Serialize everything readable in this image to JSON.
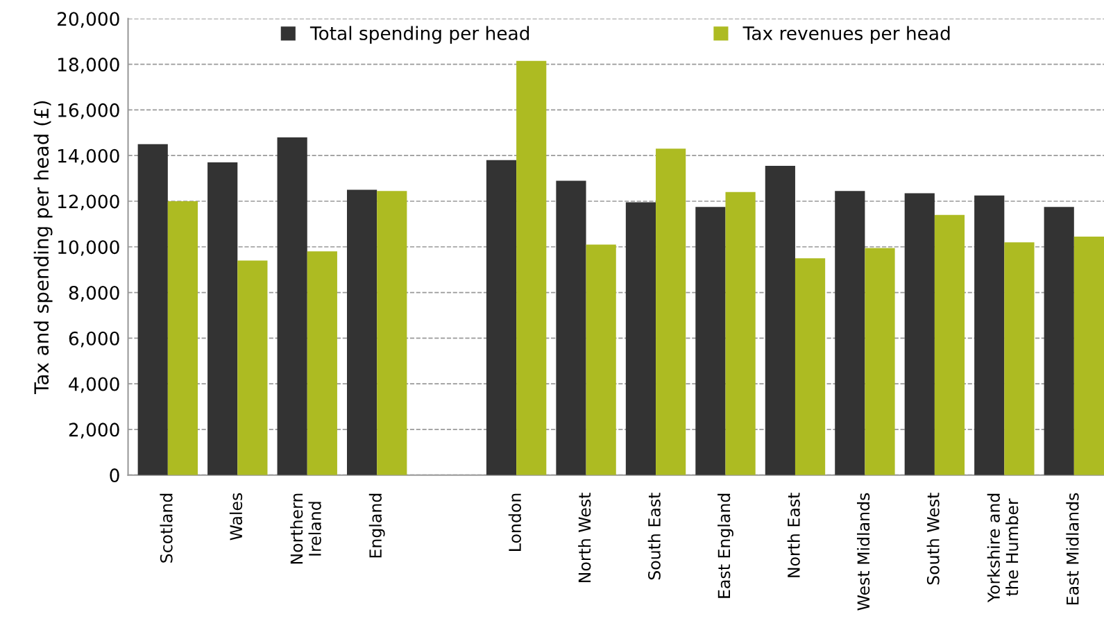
{
  "chart_data": {
    "type": "bar",
    "ylabel": "Tax and spending per head (£)",
    "categories": [
      "Scotland",
      "Wales",
      "Northern\nIreland",
      "England",
      null,
      "London",
      "North West",
      "South East",
      "East England",
      "North East",
      "West Midlands",
      "South West",
      "Yorkshire and\nthe Humber",
      "East Midlands"
    ],
    "series": [
      {
        "name": "Total spending per head",
        "color": "#333333",
        "values": [
          14500,
          13700,
          14800,
          12500,
          null,
          13800,
          12900,
          11950,
          11750,
          13550,
          12450,
          12350,
          12250,
          11750
        ]
      },
      {
        "name": "Tax revenues per head",
        "color": "#adbb22",
        "values": [
          12000,
          9400,
          9800,
          12450,
          null,
          18150,
          10100,
          14300,
          12400,
          9500,
          9950,
          11400,
          10200,
          10450
        ]
      }
    ],
    "ylim": [
      0,
      20000
    ],
    "yticks": [
      {
        "value": 0,
        "label": "0"
      },
      {
        "value": 2000,
        "label": "2,000"
      },
      {
        "value": 4000,
        "label": "4,000"
      },
      {
        "value": 6000,
        "label": "6,000"
      },
      {
        "value": 8000,
        "label": "8,000"
      },
      {
        "value": 10000,
        "label": "10,000"
      },
      {
        "value": 12000,
        "label": "12,000"
      },
      {
        "value": 14000,
        "label": "14,000"
      },
      {
        "value": 16000,
        "label": "16,000"
      },
      {
        "value": 18000,
        "label": "18,000"
      },
      {
        "value": 20000,
        "label": "20,000"
      }
    ],
    "grid": "y",
    "legend": "top"
  }
}
